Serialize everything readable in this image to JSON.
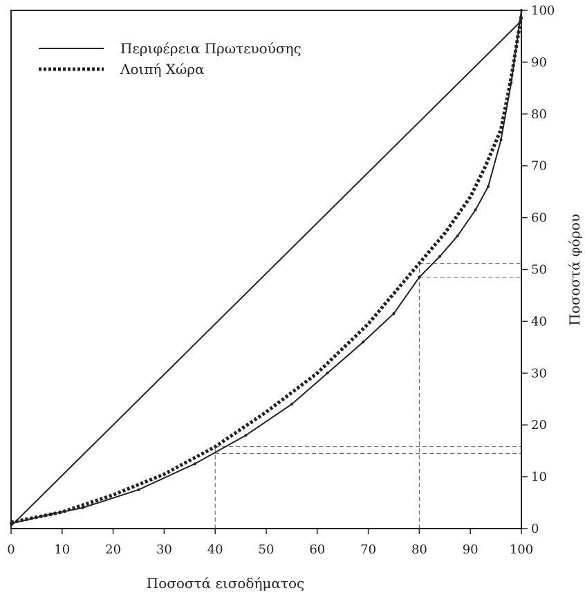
{
  "chart_data": {
    "type": "line",
    "title": "",
    "xlabel": "Ποσοστά εισοδήματος",
    "ylabel": "Ποσοστά φόρου",
    "xlim": [
      0,
      100
    ],
    "ylim": [
      0,
      100
    ],
    "x_ticks": [
      "0",
      "10",
      "20",
      "30",
      "40",
      "50",
      "60",
      "70",
      "80",
      "90",
      "100"
    ],
    "y_ticks": [
      "0",
      "10",
      "20",
      "30",
      "40",
      "50",
      "60",
      "70",
      "80",
      "90",
      "100"
    ],
    "grid": false,
    "legend_position": "top-left",
    "series": [
      {
        "name": "Περιφέρεια Πρωτευούσης",
        "style": "solid",
        "color": "#222222",
        "points": [
          [
            0,
            1
          ],
          [
            8,
            2.8
          ],
          [
            14,
            4
          ],
          [
            25,
            7.5
          ],
          [
            36,
            12.5
          ],
          [
            46,
            18
          ],
          [
            55,
            24
          ],
          [
            62,
            30
          ],
          [
            69,
            36
          ],
          [
            75,
            41.5
          ],
          [
            80,
            48.5
          ],
          [
            84,
            52.5
          ],
          [
            87.5,
            56.5
          ],
          [
            91,
            61.5
          ],
          [
            93.5,
            66
          ],
          [
            96,
            75
          ],
          [
            98,
            86
          ],
          [
            100,
            100
          ]
        ]
      },
      {
        "name": "Λοιπή Χώρα",
        "style": "dotted",
        "color": "#222222",
        "points": [
          [
            0,
            1.2
          ],
          [
            10,
            3.2
          ],
          [
            20,
            6.5
          ],
          [
            30,
            10.5
          ],
          [
            40,
            15.8
          ],
          [
            50,
            22.5
          ],
          [
            60,
            30
          ],
          [
            70,
            39.5
          ],
          [
            80,
            51.2
          ],
          [
            85,
            57
          ],
          [
            90,
            64
          ],
          [
            93,
            70
          ],
          [
            96,
            77
          ],
          [
            98,
            87
          ],
          [
            100,
            99
          ]
        ]
      },
      {
        "name": "",
        "style": "solid",
        "color": "#222222",
        "points": [
          [
            0,
            0.5
          ],
          [
            100,
            98
          ]
        ]
      }
    ],
    "reference_lines": [
      {
        "x": 40,
        "y_values": [
          14.5,
          15.8
        ]
      },
      {
        "x": 80,
        "y_values": [
          48.5,
          51.2
        ]
      }
    ]
  }
}
